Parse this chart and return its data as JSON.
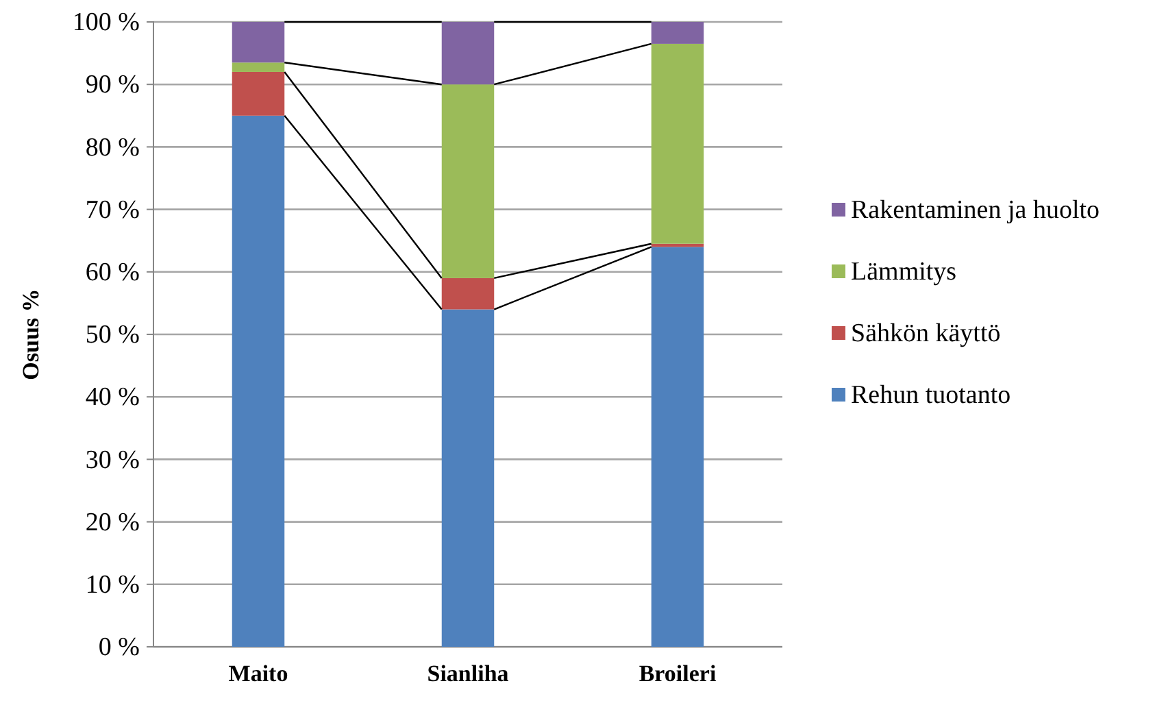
{
  "chart_data": {
    "type": "bar",
    "stacked": true,
    "ylabel": "Osuus %",
    "categories": [
      "Maito",
      "Sianliha",
      "Broileri"
    ],
    "series": [
      {
        "name": "Rehun tuotanto",
        "color": "#4f81bd",
        "values": [
          85,
          54,
          64
        ]
      },
      {
        "name": "Sähkön käyttö",
        "color": "#c0504d",
        "values": [
          7,
          5,
          0.5
        ]
      },
      {
        "name": "Lämmitys",
        "color": "#9bbb59",
        "values": [
          1.5,
          31,
          32
        ]
      },
      {
        "name": "Rakentaminen ja huolto",
        "color": "#8064a2",
        "values": [
          6.5,
          10,
          3.5
        ]
      }
    ],
    "ylim": [
      0,
      100
    ],
    "yticks": [
      {
        "value": 0,
        "label": "0 %"
      },
      {
        "value": 10,
        "label": "10 %"
      },
      {
        "value": 20,
        "label": "20 %"
      },
      {
        "value": 30,
        "label": "30 %"
      },
      {
        "value": 40,
        "label": "40 %"
      },
      {
        "value": 50,
        "label": "50 %"
      },
      {
        "value": 60,
        "label": "60 %"
      },
      {
        "value": 70,
        "label": "70 %"
      },
      {
        "value": 80,
        "label": "80 %"
      },
      {
        "value": 90,
        "label": "90 %"
      },
      {
        "value": 100,
        "label": "100 %"
      }
    ],
    "grid": "y",
    "legend": "right"
  }
}
